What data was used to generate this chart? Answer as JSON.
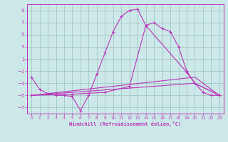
{
  "xlabel": "Windchill (Refroidissement éolien,°C)",
  "xlim": [
    -0.5,
    23.5
  ],
  "ylim": [
    -8.0,
    10.0
  ],
  "yticks": [
    -7,
    -5,
    -3,
    -1,
    1,
    3,
    5,
    7,
    9
  ],
  "xticks": [
    0,
    1,
    2,
    3,
    4,
    5,
    6,
    7,
    8,
    9,
    10,
    11,
    12,
    13,
    14,
    15,
    16,
    17,
    18,
    19,
    20,
    21,
    22,
    23
  ],
  "line_color": "#bb33bb",
  "bg_color": "#cce8e8",
  "grid_color": "#9bbfbf",
  "curve1_x": [
    0,
    1,
    2,
    3,
    4,
    5,
    6,
    7,
    8,
    9,
    10,
    11,
    12,
    13,
    14,
    15,
    16,
    17,
    18,
    19,
    20,
    21,
    22,
    23
  ],
  "curve1_y": [
    -2.0,
    -4.0,
    -4.7,
    -5.0,
    -5.0,
    -5.2,
    -7.5,
    -5.0,
    -1.5,
    2.0,
    5.5,
    8.0,
    9.0,
    9.2,
    6.5,
    7.0,
    6.0,
    5.5,
    3.0,
    -1.0,
    -3.0,
    -4.5,
    -5.0,
    -5.0
  ],
  "line2_x": [
    0,
    5,
    9,
    12,
    14,
    19,
    20,
    23
  ],
  "line2_y": [
    -5.0,
    -4.8,
    -4.5,
    -3.5,
    6.5,
    -1.2,
    -3.0,
    -5.0
  ],
  "line3_x": [
    0,
    20,
    23
  ],
  "line3_y": [
    -5.0,
    -3.0,
    -5.0
  ],
  "line4_x": [
    0,
    20,
    23
  ],
  "line4_y": [
    -5.0,
    -2.0,
    -5.0
  ]
}
